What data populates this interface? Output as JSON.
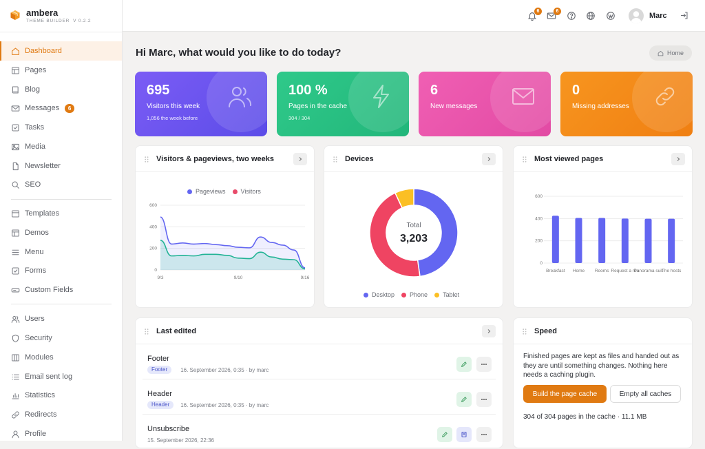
{
  "app": {
    "name": "ambera",
    "subtitle": "THEME BUILDER",
    "version": "V 0.2.2"
  },
  "sidebar": {
    "items": [
      {
        "label": "Dashboard",
        "icon": "home-icon",
        "active": true
      },
      {
        "label": "Pages",
        "icon": "layout-icon"
      },
      {
        "label": "Blog",
        "icon": "book-icon"
      },
      {
        "label": "Messages",
        "icon": "mail-icon",
        "badge": "6"
      },
      {
        "label": "Tasks",
        "icon": "checkbox-icon"
      },
      {
        "label": "Media",
        "icon": "image-icon"
      },
      {
        "label": "Newsletter",
        "icon": "file-icon"
      },
      {
        "label": "SEO",
        "icon": "search-icon"
      },
      {
        "label": "Templates",
        "icon": "template-icon"
      },
      {
        "label": "Demos",
        "icon": "layout-icon"
      },
      {
        "label": "Menu",
        "icon": "menu-icon"
      },
      {
        "label": "Forms",
        "icon": "checkbox-icon"
      },
      {
        "label": "Custom Fields",
        "icon": "field-icon"
      },
      {
        "label": "Users",
        "icon": "users-icon"
      },
      {
        "label": "Security",
        "icon": "shield-icon"
      },
      {
        "label": "Modules",
        "icon": "columns-icon"
      },
      {
        "label": "Email sent log",
        "icon": "list-icon"
      },
      {
        "label": "Statistics",
        "icon": "bar-chart-icon"
      },
      {
        "label": "Redirects",
        "icon": "link-icon"
      },
      {
        "label": "Profile",
        "icon": "user-icon"
      }
    ]
  },
  "topbar": {
    "notifications_count": "6",
    "messages_count": "6",
    "user_name": "Marc"
  },
  "main": {
    "greeting": "Hi Marc, what would you like to do today?",
    "breadcrumb": "Home",
    "stats": [
      {
        "value": "695",
        "label": "Visitors this week",
        "sub": "1,056 the week before",
        "color_from": "#7b5cf5",
        "color_to": "#5b4ce8"
      },
      {
        "value": "100 %",
        "label": "Pages in the cache",
        "sub": "304 / 304",
        "color_from": "#2fc98a",
        "color_to": "#22b67a"
      },
      {
        "value": "6",
        "label": "New messages",
        "sub": "",
        "color_from": "#f05fb3",
        "color_to": "#e24aa4"
      },
      {
        "value": "0",
        "label": "Missing addresses",
        "sub": "",
        "color_from": "#f7951f",
        "color_to": "#f07f12"
      }
    ]
  },
  "cards": {
    "visitors_title": "Visitors & pageviews, two weeks",
    "devices_title": "Devices",
    "devices_total_label": "Total",
    "devices_total_value": "3,203",
    "most_viewed_title": "Most viewed pages",
    "last_edited_title": "Last edited",
    "speed_title": "Speed"
  },
  "chart_data": [
    {
      "type": "area",
      "title": "Visitors & pageviews, two weeks",
      "x": [
        "9/3",
        "9/4",
        "9/5",
        "9/6",
        "9/7",
        "9/8",
        "9/9",
        "9/10",
        "9/11",
        "9/12",
        "9/13",
        "9/14",
        "9/15",
        "9/16"
      ],
      "x_tick_labels": [
        "9/3",
        "9/10",
        "9/16"
      ],
      "series": [
        {
          "name": "Pageviews",
          "color": "#6366f1",
          "values": [
            490,
            240,
            250,
            240,
            245,
            235,
            225,
            210,
            205,
            305,
            255,
            230,
            185,
            20
          ]
        },
        {
          "name": "Visitors",
          "color": "#e84a6a",
          "values": [
            275,
            130,
            135,
            130,
            145,
            145,
            135,
            110,
            105,
            165,
            120,
            100,
            95,
            10
          ]
        }
      ],
      "ylim": [
        0,
        600
      ],
      "y_ticks": [
        0,
        200,
        400,
        600
      ],
      "legend": "top"
    },
    {
      "type": "pie",
      "title": "Devices",
      "categories": [
        "Desktop",
        "Phone",
        "Tablet"
      ],
      "values": [
        1530,
        1450,
        223
      ],
      "colors": [
        "#6366f1",
        "#ef4462",
        "#fbbf24"
      ],
      "legend": "bottom"
    },
    {
      "type": "bar",
      "title": "Most viewed pages",
      "categories": [
        "Breakfast",
        "Home",
        "Rooms",
        "Request a room",
        "Panorama suite",
        "The hosts"
      ],
      "x_tick_labels": [
        "Breakfast",
        "Home",
        "Rooms",
        "Request a roo",
        "Panorama suit",
        "The hosts"
      ],
      "values": [
        425,
        405,
        405,
        400,
        398,
        398
      ],
      "ylim": [
        0,
        600
      ],
      "y_ticks": [
        0,
        200,
        400,
        600
      ],
      "color": "#6366f1"
    }
  ],
  "last_edited": [
    {
      "title": "Footer",
      "tag": "Footer",
      "meta": "16. September 2026, 0:35 · by marc"
    },
    {
      "title": "Header",
      "tag": "Header",
      "meta": "16. September 2026, 0:35 · by marc"
    },
    {
      "title": "Unsubscribe",
      "tag": "",
      "meta": "15. September 2026, 22:36"
    }
  ],
  "speed": {
    "text": "Finished pages are kept as files and handed out as they are until something changes. Nothing here needs a caching plugin.",
    "build_label": "Build the page cache",
    "empty_label": "Empty all caches",
    "stat": "304 of 304 pages in the cache · 11.1 MB"
  }
}
